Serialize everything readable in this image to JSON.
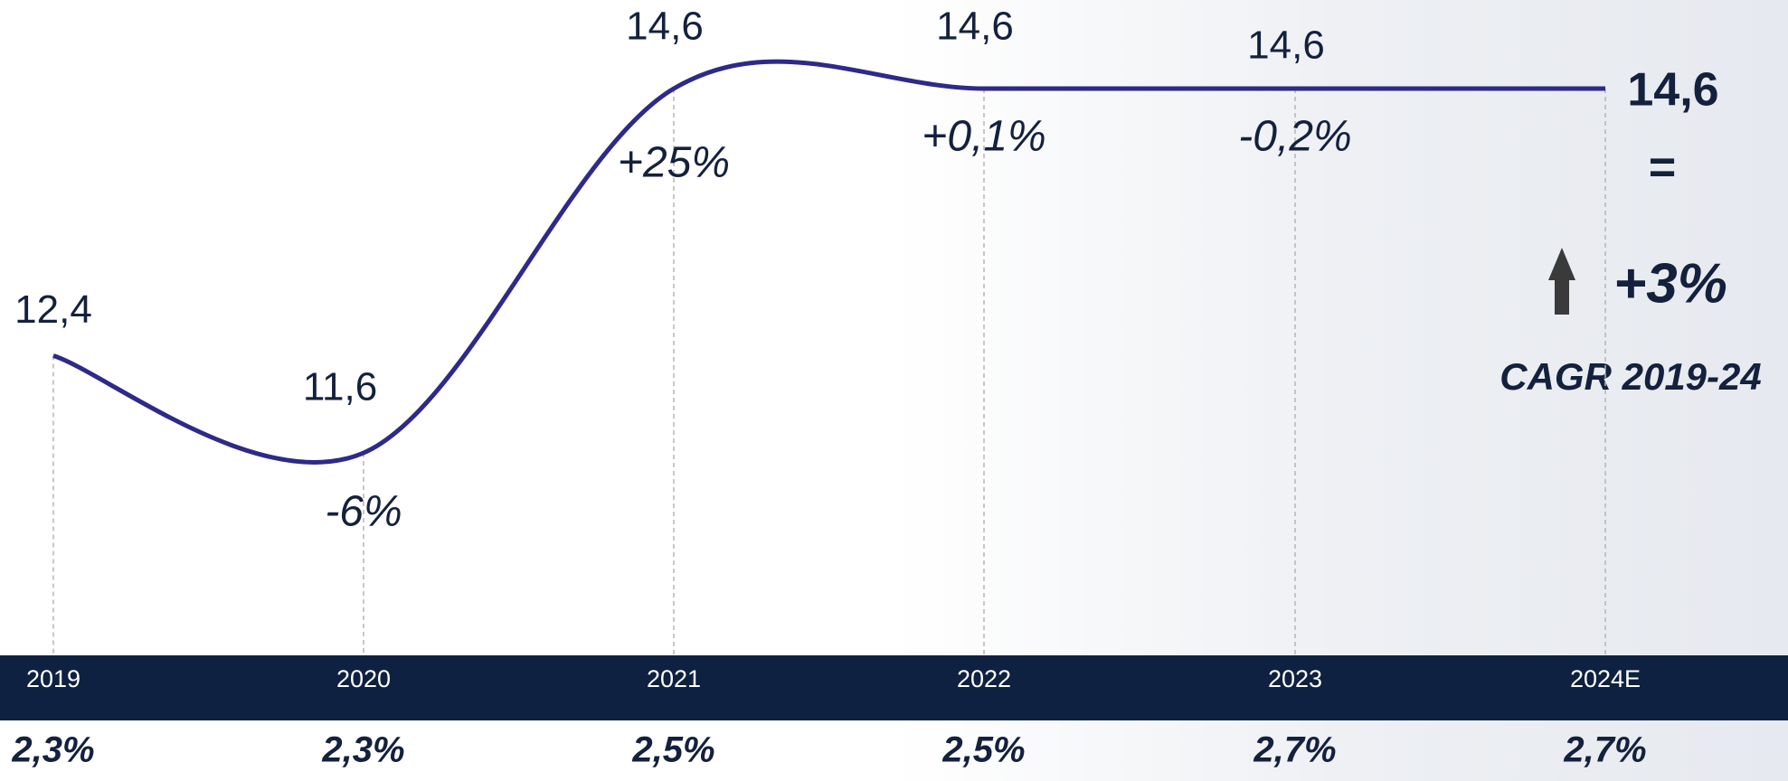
{
  "chart_data": {
    "type": "line",
    "categories": [
      "2019",
      "2020",
      "2021",
      "2022",
      "2023",
      "2024E"
    ],
    "series": [
      {
        "color": "#2d2a8a",
        "values": [
          12.4,
          11.6,
          14.6,
          14.6,
          14.6,
          14.6
        ],
        "value_labels": [
          "12,4",
          "11,6",
          "14,6",
          "14,6",
          "14,6",
          "14,6"
        ]
      }
    ],
    "growth_labels": [
      null,
      "-6%",
      "+25%",
      "+0,1%",
      "-0,2%",
      null
    ],
    "bottom_row": [
      "2,3%",
      "2,3%",
      "2,5%",
      "2,5%",
      "2,7%",
      "2,7%"
    ],
    "summary": {
      "equal_sign": "=",
      "change": "+3%",
      "label": "CAGR 2019-24"
    }
  }
}
